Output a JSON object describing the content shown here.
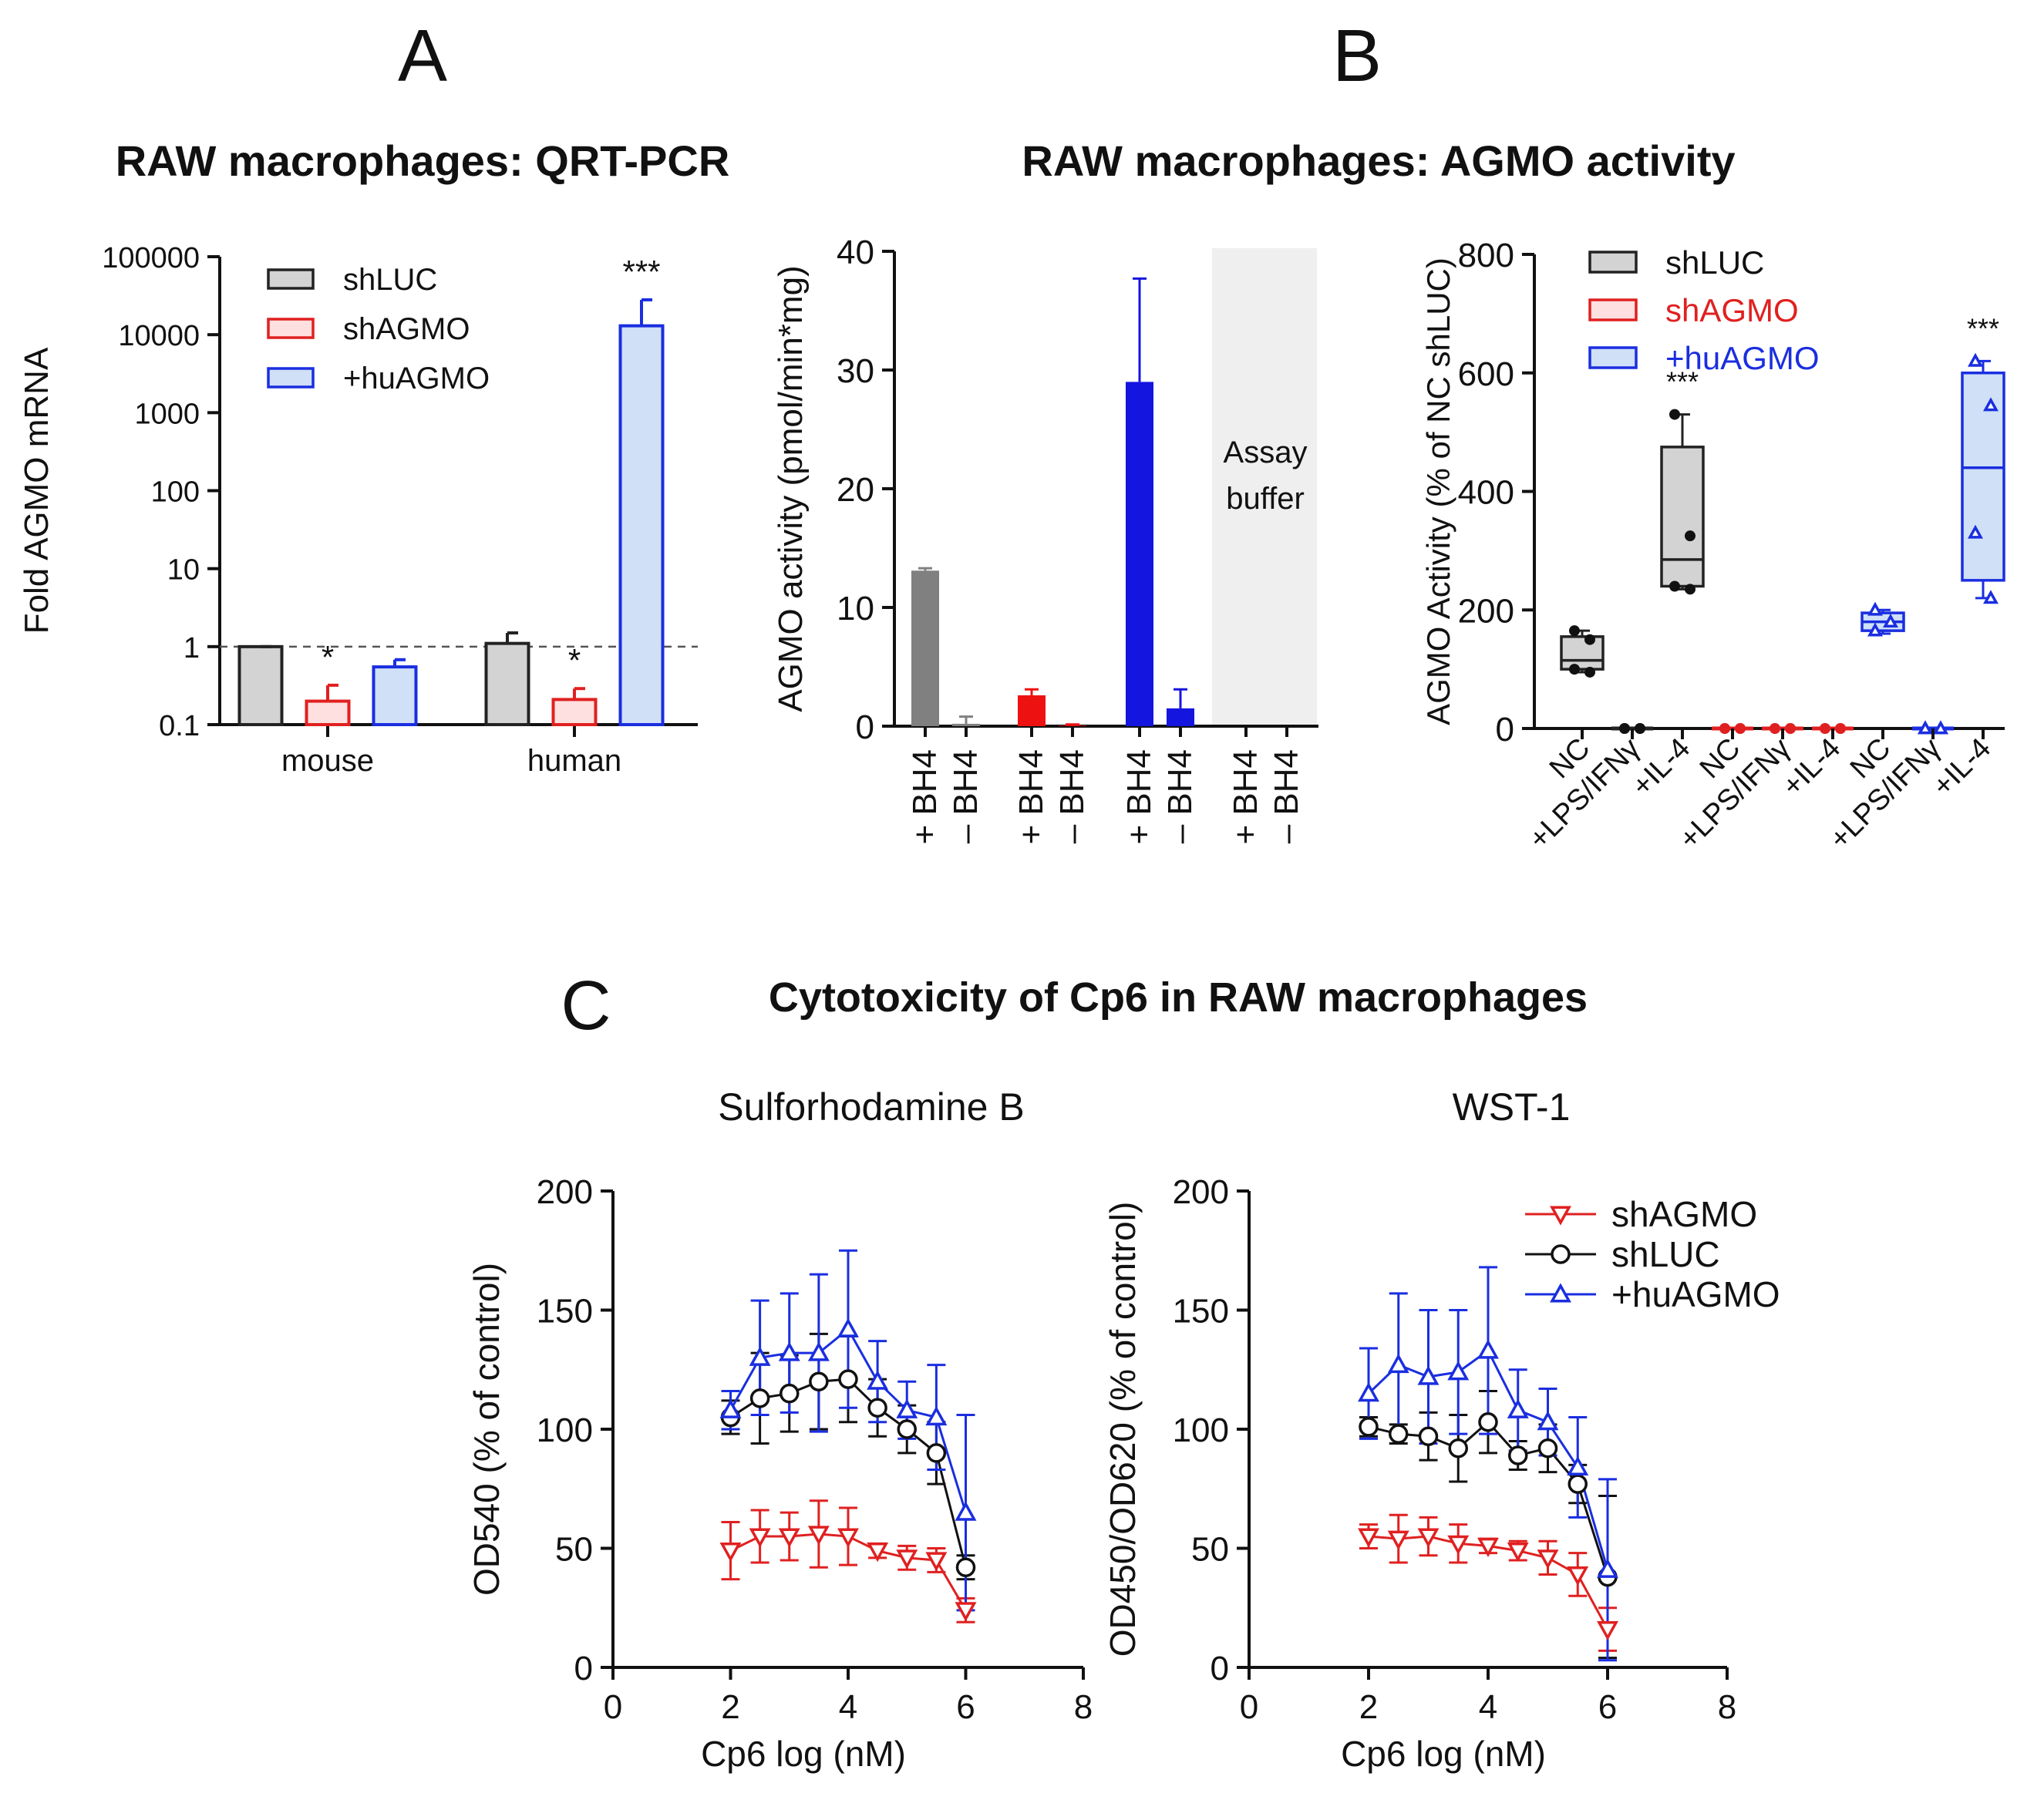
{
  "panels": {
    "A": {
      "letter": "A",
      "title": "RAW macrophages: QRT-PCR",
      "chart_data": {
        "type": "bar",
        "yscale": "log",
        "ylabel": "Fold AGMO mRNA",
        "ylim": [
          0.1,
          100000
        ],
        "yticks": [
          "0.1",
          "1",
          "10",
          "100",
          "1000",
          "10000",
          "100000"
        ],
        "categories": [
          "mouse",
          "human"
        ],
        "reference_line": 1,
        "series": [
          {
            "name": "shLUC",
            "fill": "#d3d3d3",
            "stroke": "#222222",
            "values": [
              1.0,
              1.1
            ],
            "errors_upper": [
              1.0,
              1.5
            ]
          },
          {
            "name": "shAGMO",
            "fill": "#fde0df",
            "stroke": "#e02020",
            "values": [
              0.2,
              0.21
            ],
            "errors_upper": [
              0.32,
              0.29
            ]
          },
          {
            "name": "+huAGMO",
            "fill": "#cfe0f7",
            "stroke": "#1a2ee0",
            "values": [
              0.55,
              13000
            ],
            "errors_upper": [
              0.68,
              28000
            ]
          }
        ],
        "annotations": [
          {
            "category": "mouse",
            "series": "shAGMO",
            "text": "*"
          },
          {
            "category": "human",
            "series": "shAGMO",
            "text": "*"
          },
          {
            "category": "human",
            "series": "+huAGMO",
            "text": "***"
          }
        ]
      }
    },
    "B": {
      "letter": "B",
      "title": "RAW macrophages: AGMO activity",
      "left_chart": {
        "chart_data": {
          "type": "bar",
          "ylabel": "AGMO activity (pmol/min*mg)",
          "ylim": [
            0,
            40
          ],
          "yticks": [
            "0",
            "10",
            "20",
            "30",
            "40"
          ],
          "categories": [
            "+ BH4",
            "– BH4",
            "+ BH4",
            "– BH4",
            "+ BH4",
            "– BH4",
            "+ BH4",
            "– BH4"
          ],
          "bars": [
            {
              "label": "+ BH4",
              "value": 13.1,
              "error": 0.2,
              "color": "#808080"
            },
            {
              "label": "– BH4",
              "value": 0.2,
              "error": 0.6,
              "color": "#808080"
            },
            {
              "label": "+ BH4",
              "value": 2.6,
              "error": 0.5,
              "color": "#ee1111"
            },
            {
              "label": "– BH4",
              "value": 0.05,
              "error": 0.1,
              "color": "#ee1111"
            },
            {
              "label": "+ BH4",
              "value": 29.0,
              "error": 8.7,
              "color": "#1515e0"
            },
            {
              "label": "– BH4",
              "value": 1.5,
              "error": 1.6,
              "color": "#1515e0"
            },
            {
              "label": "+ BH4",
              "value": 0,
              "error": 0,
              "color": "#1515e0"
            },
            {
              "label": "– BH4",
              "value": 0,
              "error": 0,
              "color": "#1515e0"
            }
          ],
          "shaded_region_label_line1": "Assay",
          "shaded_region_label_line2": "buffer"
        }
      },
      "right_chart": {
        "chart_data": {
          "type": "box",
          "ylabel": "AGMO Activity (% of NC shLUC)",
          "ylim": [
            0,
            800
          ],
          "yticks": [
            "0",
            "200",
            "400",
            "600",
            "800"
          ],
          "categories": [
            "NC",
            "+LPS/IFNγ",
            "+IL-4",
            "NC",
            "+LPS/IFNγ",
            "+IL-4",
            "NC",
            "+LPS/IFNγ",
            "+IL-4"
          ],
          "series": [
            {
              "name": "shLUC",
              "fill": "#d3d3d3",
              "stroke": "#222222",
              "text_color": "#111111",
              "boxes": [
                {
                  "q1": 100,
                  "median": 115,
                  "q3": 155,
                  "min": 95,
                  "max": 165,
                  "points": [
                    165,
                    150,
                    100,
                    95
                  ]
                },
                {
                  "q1": 0,
                  "median": 0,
                  "q3": 0,
                  "min": 0,
                  "max": 0,
                  "points": [
                    0,
                    0,
                    0,
                    0
                  ]
                },
                {
                  "q1": 240,
                  "median": 285,
                  "q3": 475,
                  "min": 235,
                  "max": 530,
                  "points": [
                    530,
                    325,
                    240,
                    235
                  ]
                }
              ]
            },
            {
              "name": "shAGMO",
              "fill": "#fde0df",
              "stroke": "#e02020",
              "text_color": "#e02020",
              "boxes": [
                {
                  "q1": 0,
                  "median": 0,
                  "q3": 0,
                  "min": 0,
                  "max": 0,
                  "points": [
                    0,
                    0,
                    0,
                    0
                  ]
                },
                {
                  "q1": 0,
                  "median": 0,
                  "q3": 0,
                  "min": 0,
                  "max": 0,
                  "points": [
                    0,
                    0,
                    0,
                    0
                  ]
                },
                {
                  "q1": 0,
                  "median": 0,
                  "q3": 0,
                  "min": 0,
                  "max": 0,
                  "points": [
                    0,
                    0,
                    0,
                    0
                  ]
                }
              ]
            },
            {
              "name": "+huAGMO",
              "fill": "#cfe0f7",
              "stroke": "#1a2ee0",
              "text_color": "#1a2ee0",
              "boxes": [
                {
                  "q1": 165,
                  "median": 180,
                  "q3": 195,
                  "min": 160,
                  "max": 200,
                  "points": [
                    200,
                    180,
                    165
                  ]
                },
                {
                  "q1": 0,
                  "median": 0,
                  "q3": 0,
                  "min": 0,
                  "max": 0,
                  "points": [
                    0,
                    0,
                    0,
                    0
                  ]
                },
                {
                  "q1": 250,
                  "median": 440,
                  "q3": 600,
                  "min": 220,
                  "max": 620,
                  "points": [
                    620,
                    545,
                    330,
                    220
                  ]
                }
              ]
            }
          ],
          "annotations": [
            {
              "group": "shLUC",
              "category": "+IL-4",
              "text": "***"
            },
            {
              "group": "+huAGMO",
              "category": "+IL-4",
              "text": "***"
            }
          ]
        }
      }
    },
    "C": {
      "letter": "C",
      "title": "Cytotoxicity of Cp6 in RAW macrophages",
      "legend": [
        {
          "name": "shAGMO",
          "color": "#e02020",
          "marker": "triangle-down"
        },
        {
          "name": "shLUC",
          "color": "#111111",
          "marker": "circle"
        },
        {
          "name": "+huAGMO",
          "color": "#1a2ee0",
          "marker": "triangle-up"
        }
      ],
      "plots": [
        {
          "chart_data": {
            "type": "line",
            "subtitle": "Sulforhodamine B",
            "xlabel": "Cp6 log (nM)",
            "ylabel": "OD540 (% of control)",
            "xlim": [
              0,
              8
            ],
            "ylim": [
              0,
              200
            ],
            "xticks": [
              "0",
              "2",
              "4",
              "6",
              "8"
            ],
            "yticks": [
              "0",
              "50",
              "100",
              "150",
              "200"
            ],
            "x": [
              2,
              2.5,
              3,
              3.5,
              4,
              4.5,
              5,
              5.5,
              6
            ],
            "series": [
              {
                "name": "shAGMO",
                "color": "#e02020",
                "marker": "triangle-down",
                "values": [
                  49,
                  55,
                  55,
                  56,
                  55,
                  49,
                  46,
                  45,
                  24
                ],
                "errors": [
                  12,
                  11,
                  10,
                  14,
                  12,
                  3,
                  5,
                  5,
                  5
                ]
              },
              {
                "name": "shLUC",
                "color": "#111111",
                "marker": "circle",
                "values": [
                  105,
                  113,
                  115,
                  120,
                  121,
                  109,
                  100,
                  90,
                  42
                ],
                "errors": [
                  7,
                  19,
                  16,
                  20,
                  18,
                  12,
                  10,
                  13,
                  5
                ]
              },
              {
                "name": "+huAGMO",
                "color": "#1a2ee0",
                "marker": "triangle-up",
                "values": [
                  108,
                  130,
                  132,
                  132,
                  142,
                  120,
                  108,
                  105,
                  65
                ],
                "errors": [
                  8,
                  24,
                  25,
                  33,
                  33,
                  17,
                  12,
                  22,
                  41
                ]
              }
            ]
          }
        },
        {
          "chart_data": {
            "type": "line",
            "subtitle": "WST-1",
            "xlabel": "Cp6 log (nM)",
            "ylabel": "OD450/OD620 (% of control)",
            "xlim": [
              0,
              8
            ],
            "ylim": [
              0,
              200
            ],
            "xticks": [
              "0",
              "2",
              "4",
              "6",
              "8"
            ],
            "yticks": [
              "0",
              "50",
              "100",
              "150",
              "200"
            ],
            "x": [
              2,
              2.5,
              3,
              3.5,
              4,
              4.5,
              5,
              5.5,
              6
            ],
            "series": [
              {
                "name": "shAGMO",
                "color": "#e02020",
                "marker": "triangle-down",
                "values": [
                  55,
                  54,
                  55,
                  52,
                  51,
                  49,
                  46,
                  39,
                  16
                ],
                "errors": [
                  5,
                  10,
                  8,
                  8,
                  3,
                  4,
                  7,
                  9,
                  9
                ]
              },
              {
                "name": "shLUC",
                "color": "#111111",
                "marker": "circle",
                "values": [
                  101,
                  98,
                  97,
                  92,
                  103,
                  89,
                  92,
                  77,
                  38
                ],
                "errors": [
                  4,
                  4,
                  10,
                  14,
                  13,
                  6,
                  10,
                  8,
                  34
                ]
              },
              {
                "name": "+huAGMO",
                "color": "#1a2ee0",
                "marker": "triangle-up",
                "values": [
                  115,
                  127,
                  122,
                  124,
                  133,
                  108,
                  103,
                  84,
                  41
                ],
                "errors": [
                  19,
                  30,
                  28,
                  26,
                  35,
                  17,
                  14,
                  21,
                  38
                ]
              }
            ]
          }
        }
      ]
    }
  }
}
